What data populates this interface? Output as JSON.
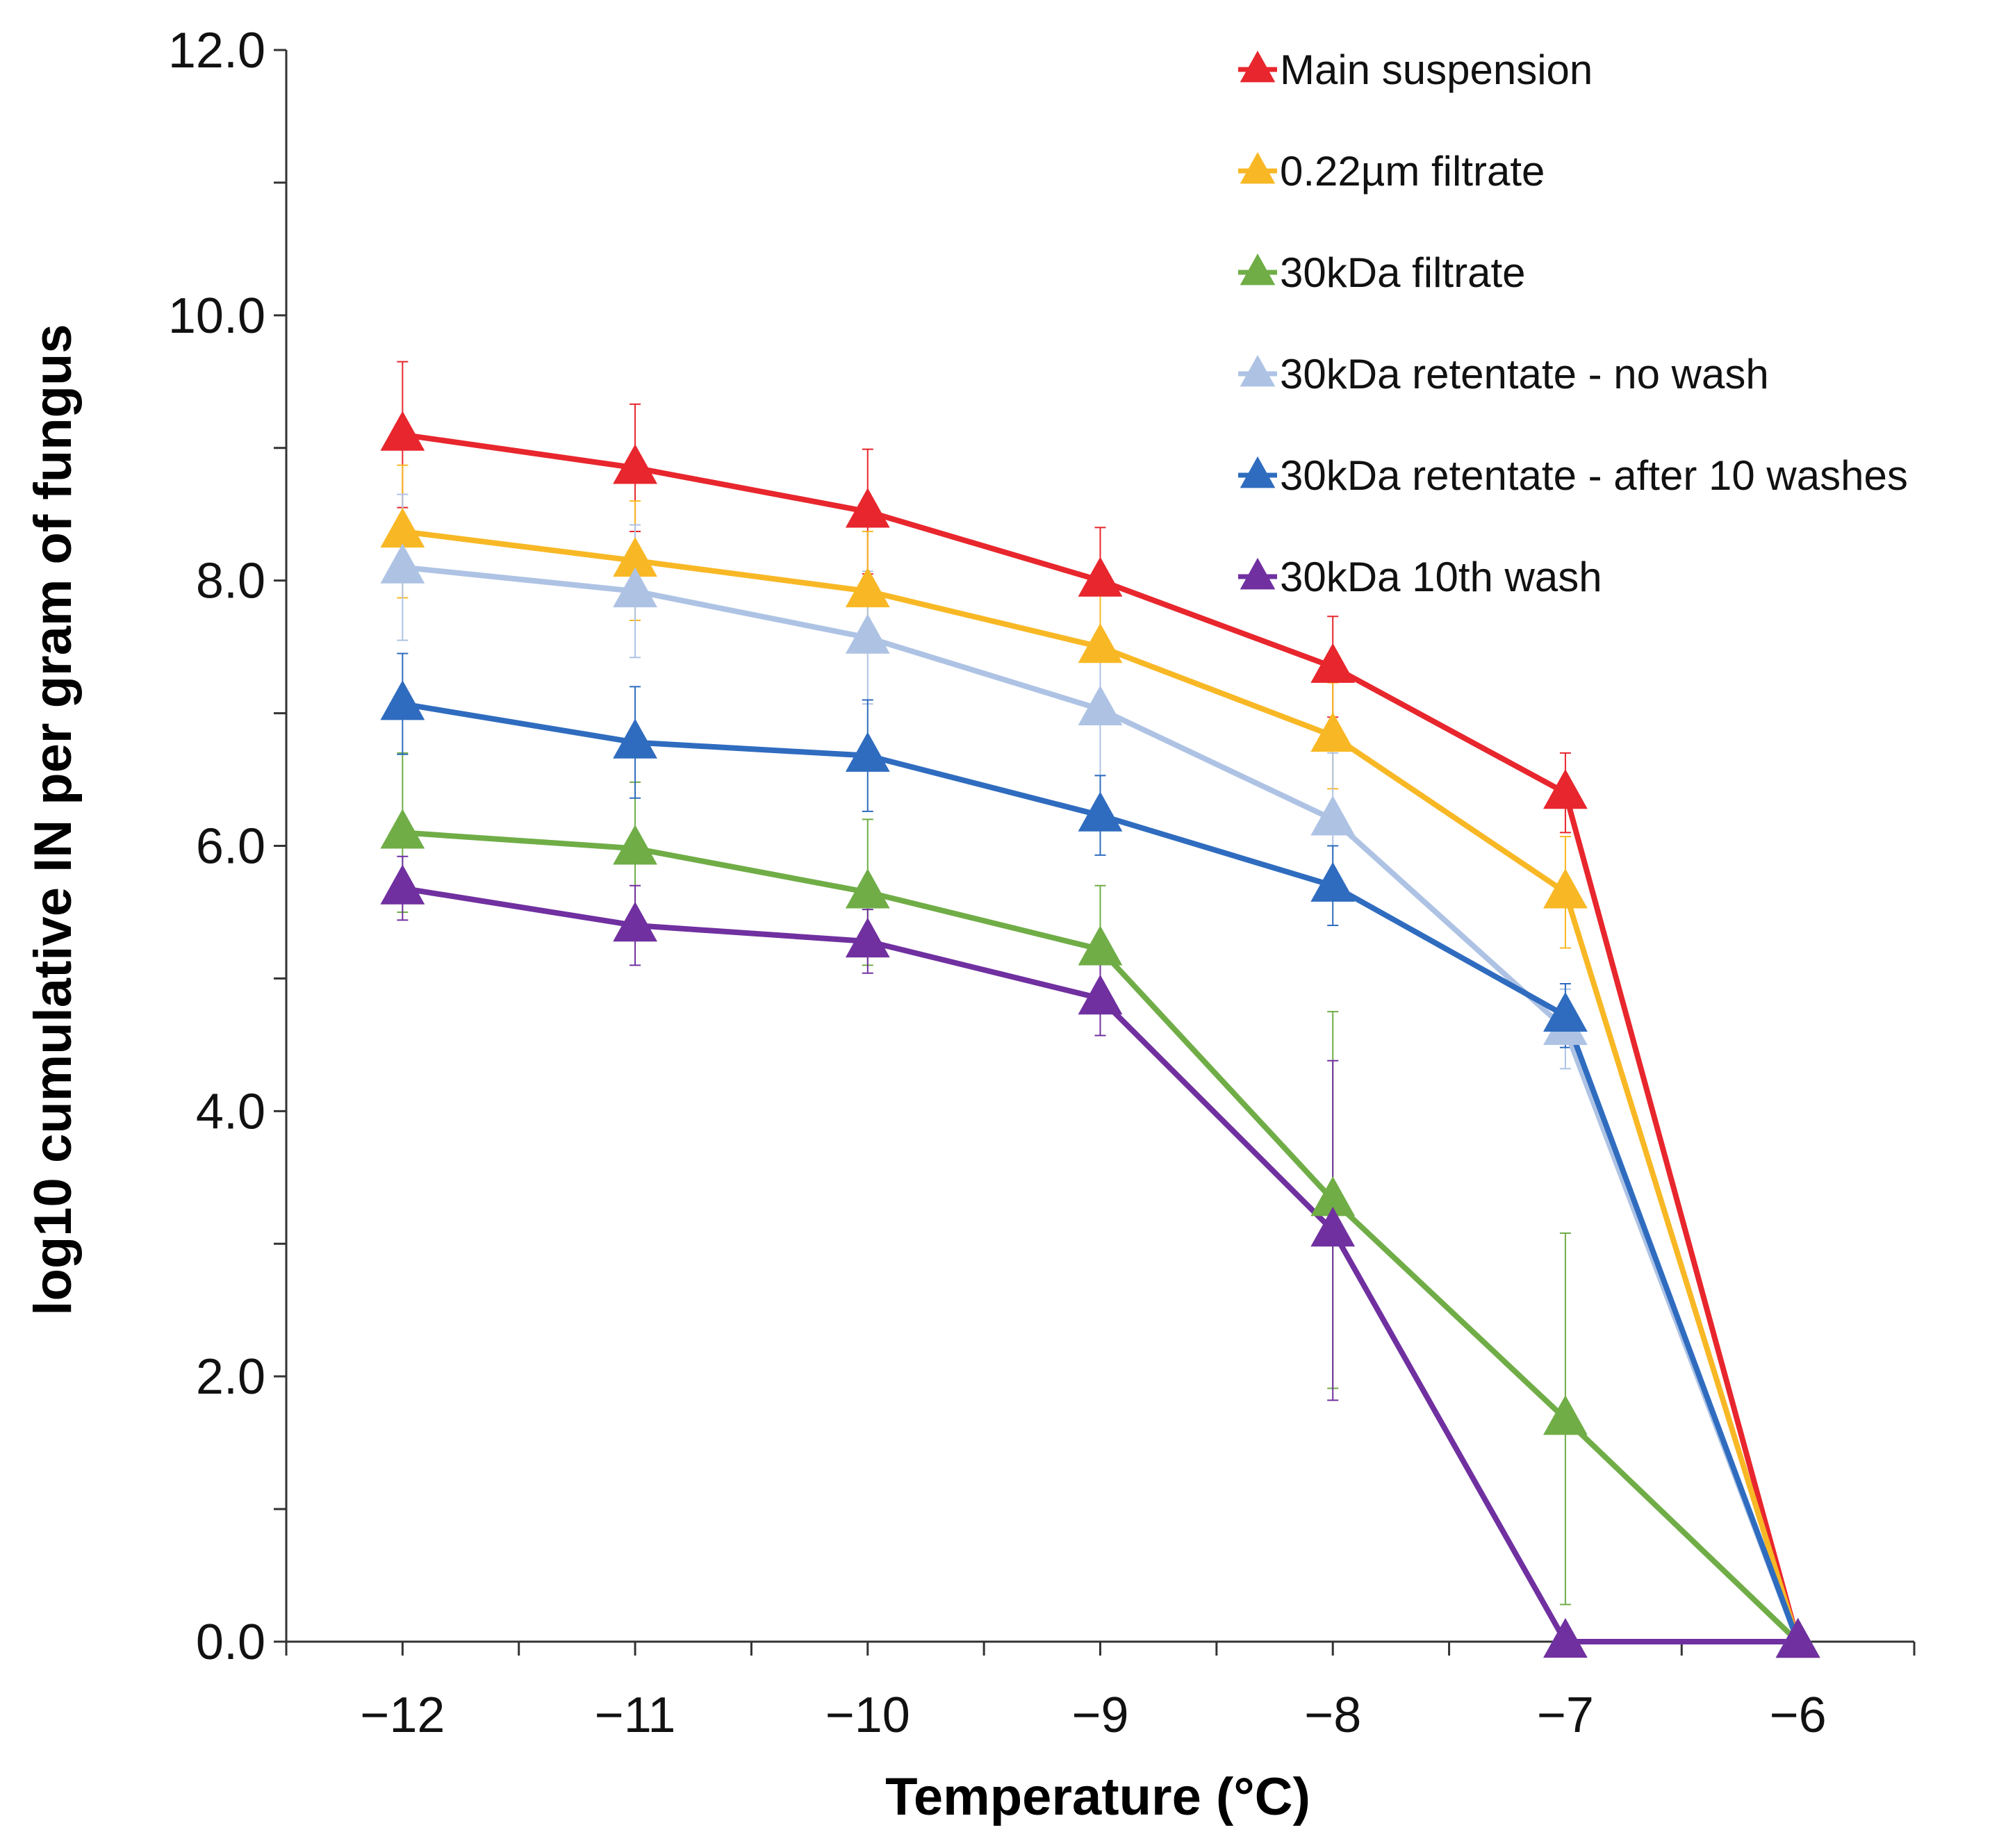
{
  "chart_data": {
    "type": "line",
    "title": "",
    "xlabel": "Temperature (°C)",
    "ylabel": "log10 cumulative IN per gram of fungus",
    "xlim": [
      -12.5,
      -5.5
    ],
    "ylim": [
      0,
      12
    ],
    "x": [
      -12,
      -11,
      -10,
      -9,
      -8,
      -7,
      -6
    ],
    "x_tick_labels": [
      "−12",
      "−11",
      "−10",
      "−9",
      "−8",
      "−7",
      "−6"
    ],
    "y_ticks": [
      0,
      2,
      4,
      6,
      8,
      10,
      12
    ],
    "y_tick_labels": [
      "0.0",
      "2.0",
      "4.0",
      "6.0",
      "8.0",
      "10.0",
      "12.0"
    ],
    "legend_position": "top-right",
    "marker": "triangle",
    "series": [
      {
        "name": "Main suspension",
        "color": "#e8262d",
        "values": [
          9.1,
          8.85,
          8.52,
          8.0,
          7.35,
          6.4,
          0.0
        ],
        "errors": [
          0.55,
          0.48,
          0.47,
          0.4,
          0.38,
          0.3,
          0.0
        ]
      },
      {
        "name": "0.22µm filtrate",
        "color": "#f8b825",
        "values": [
          8.37,
          8.15,
          7.92,
          7.5,
          6.83,
          5.65,
          0.0
        ],
        "errors": [
          0.5,
          0.45,
          0.45,
          0.45,
          0.4,
          0.42,
          0.0
        ]
      },
      {
        "name": "30kDa filtrate",
        "color": "#70ad47",
        "values": [
          6.1,
          5.98,
          5.65,
          5.22,
          3.33,
          1.68,
          0.0
        ],
        "errors": [
          0.6,
          0.5,
          0.55,
          0.48,
          1.42,
          1.4,
          0.0
        ]
      },
      {
        "name": "30kDa retentate - no wash",
        "color": "#aec3e4",
        "values": [
          8.1,
          7.92,
          7.57,
          7.03,
          6.2,
          4.62,
          0.0
        ],
        "errors": [
          0.55,
          0.5,
          0.5,
          0.5,
          0.5,
          0.3,
          0.0
        ]
      },
      {
        "name": "30kDa retentate - after 10 washes",
        "color": "#2f6cbf",
        "values": [
          7.07,
          6.78,
          6.68,
          6.23,
          5.7,
          4.72,
          0.0
        ],
        "errors": [
          0.38,
          0.42,
          0.42,
          0.3,
          0.3,
          0.24,
          0.0
        ]
      },
      {
        "name": "30kDa 10th wash",
        "color": "#7030a0",
        "values": [
          5.68,
          5.4,
          5.28,
          4.85,
          3.1,
          0.0,
          0.0
        ],
        "errors": [
          0.24,
          0.3,
          0.24,
          0.28,
          1.28,
          0.0,
          0.0
        ]
      }
    ]
  }
}
